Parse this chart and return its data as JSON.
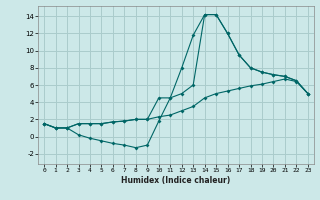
{
  "xlabel": "Humidex (Indice chaleur)",
  "background_color": "#cce8e8",
  "grid_color": "#aacccc",
  "line_color": "#006666",
  "xlim": [
    -0.5,
    23.5
  ],
  "ylim": [
    -3.2,
    15.2
  ],
  "xticks": [
    0,
    1,
    2,
    3,
    4,
    5,
    6,
    7,
    8,
    9,
    10,
    11,
    12,
    13,
    14,
    15,
    16,
    17,
    18,
    19,
    20,
    21,
    22,
    23
  ],
  "yticks": [
    -2,
    0,
    2,
    4,
    6,
    8,
    10,
    12,
    14
  ],
  "line1_x": [
    0,
    1,
    2,
    3,
    4,
    5,
    6,
    7,
    8,
    9,
    10,
    11,
    12,
    13,
    14,
    15,
    16,
    17,
    18,
    19,
    20,
    21,
    22,
    23
  ],
  "line1_y": [
    1.5,
    1.0,
    1.0,
    1.5,
    1.5,
    1.5,
    1.7,
    1.8,
    2.0,
    2.0,
    2.3,
    2.5,
    3.0,
    3.5,
    4.5,
    5.0,
    5.3,
    5.6,
    5.9,
    6.1,
    6.4,
    6.7,
    6.4,
    5.0
  ],
  "line2_x": [
    0,
    1,
    2,
    3,
    4,
    5,
    6,
    7,
    8,
    9,
    10,
    11,
    12,
    13,
    14,
    15,
    16,
    17,
    18,
    19,
    20,
    21,
    22,
    23
  ],
  "line2_y": [
    1.5,
    1.0,
    1.0,
    0.2,
    -0.2,
    -0.5,
    -0.8,
    -1.0,
    -1.3,
    -1.0,
    1.8,
    4.5,
    8.0,
    11.8,
    14.2,
    14.2,
    12.0,
    9.5,
    8.0,
    7.5,
    7.2,
    7.0,
    6.5,
    5.0
  ],
  "line3_x": [
    0,
    1,
    2,
    3,
    4,
    5,
    6,
    7,
    8,
    9,
    10,
    11,
    12,
    13,
    14,
    15,
    16,
    17,
    18,
    19,
    20,
    21,
    22,
    23
  ],
  "line3_y": [
    1.5,
    1.0,
    1.0,
    1.5,
    1.5,
    1.5,
    1.7,
    1.8,
    2.0,
    2.0,
    4.5,
    4.5,
    5.0,
    6.0,
    14.2,
    14.2,
    12.0,
    9.5,
    8.0,
    7.5,
    7.2,
    7.0,
    6.5,
    5.0
  ]
}
